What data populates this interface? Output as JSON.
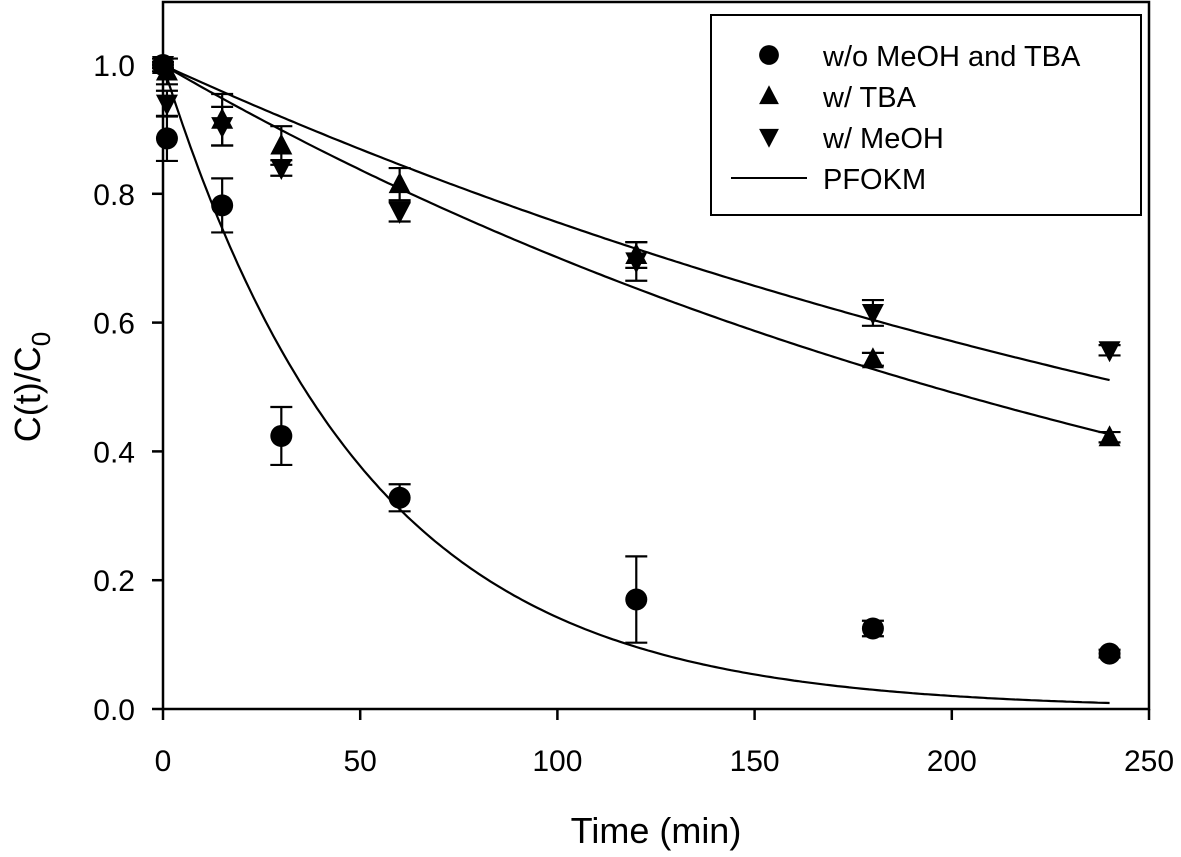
{
  "chart_data": {
    "type": "scatter",
    "title": "",
    "xlabel": "Time (min)",
    "ylabel_main": "C(t)/C",
    "ylabel_sub": "0",
    "xlim": [
      0,
      250
    ],
    "ylim": [
      0,
      1.1
    ],
    "x_ticks": [
      0,
      50,
      100,
      150,
      200,
      250
    ],
    "x_tick_labels": [
      "0",
      "50",
      "100",
      "150",
      "200",
      "250"
    ],
    "y_ticks": [
      0.0,
      0.2,
      0.4,
      0.6,
      0.8,
      1.0
    ],
    "y_tick_labels": [
      "0.0",
      "0.2",
      "0.4",
      "0.6",
      "0.8",
      "1.0"
    ],
    "grid": false,
    "legend_position": "top-right",
    "series": [
      {
        "name": "w/o MeOH and TBA",
        "marker": "circle",
        "x": [
          0,
          1,
          15,
          30,
          60,
          120,
          180,
          240
        ],
        "y": [
          1.0,
          0.886,
          0.782,
          0.424,
          0.328,
          0.17,
          0.125,
          0.086
        ],
        "err": [
          0.005,
          0.035,
          0.042,
          0.045,
          0.021,
          0.067,
          0.012,
          0.006
        ]
      },
      {
        "name": "w/ TBA",
        "marker": "triangle-up",
        "x": [
          0,
          1,
          15,
          30,
          60,
          120,
          180,
          240
        ],
        "y": [
          1.0,
          0.99,
          0.915,
          0.875,
          0.815,
          0.705,
          0.543,
          0.422
        ],
        "err": [
          0.01,
          0.02,
          0.04,
          0.03,
          0.025,
          0.02,
          0.01,
          0.008
        ]
      },
      {
        "name": "w/ MeOH",
        "marker": "triangle-down",
        "x": [
          0,
          1,
          15,
          30,
          60,
          120,
          180,
          240
        ],
        "y": [
          1.0,
          0.94,
          0.905,
          0.84,
          0.772,
          0.695,
          0.615,
          0.557
        ],
        "err": [
          0.01,
          0.02,
          0.03,
          0.012,
          0.015,
          0.03,
          0.02,
          0.008
        ]
      }
    ],
    "fits": [
      {
        "name": "PFOKM",
        "for": "w/o MeOH and TBA",
        "model": "exp",
        "k": 0.0195,
        "x_range": [
          0,
          240
        ]
      },
      {
        "name": "PFOKM",
        "for": "w/ TBA",
        "model": "exp",
        "k": 0.00355,
        "x_range": [
          0,
          240
        ]
      },
      {
        "name": "PFOKM",
        "for": "w/ MeOH",
        "model": "exp",
        "k": 0.0028,
        "x_range": [
          0,
          240
        ]
      }
    ],
    "legend": [
      {
        "label": "w/o MeOH and TBA",
        "symbol": "circle"
      },
      {
        "label": "w/ TBA",
        "symbol": "triangle-up"
      },
      {
        "label": "w/ MeOH",
        "symbol": "triangle-down"
      },
      {
        "label": "PFOKM",
        "symbol": "line"
      }
    ]
  }
}
